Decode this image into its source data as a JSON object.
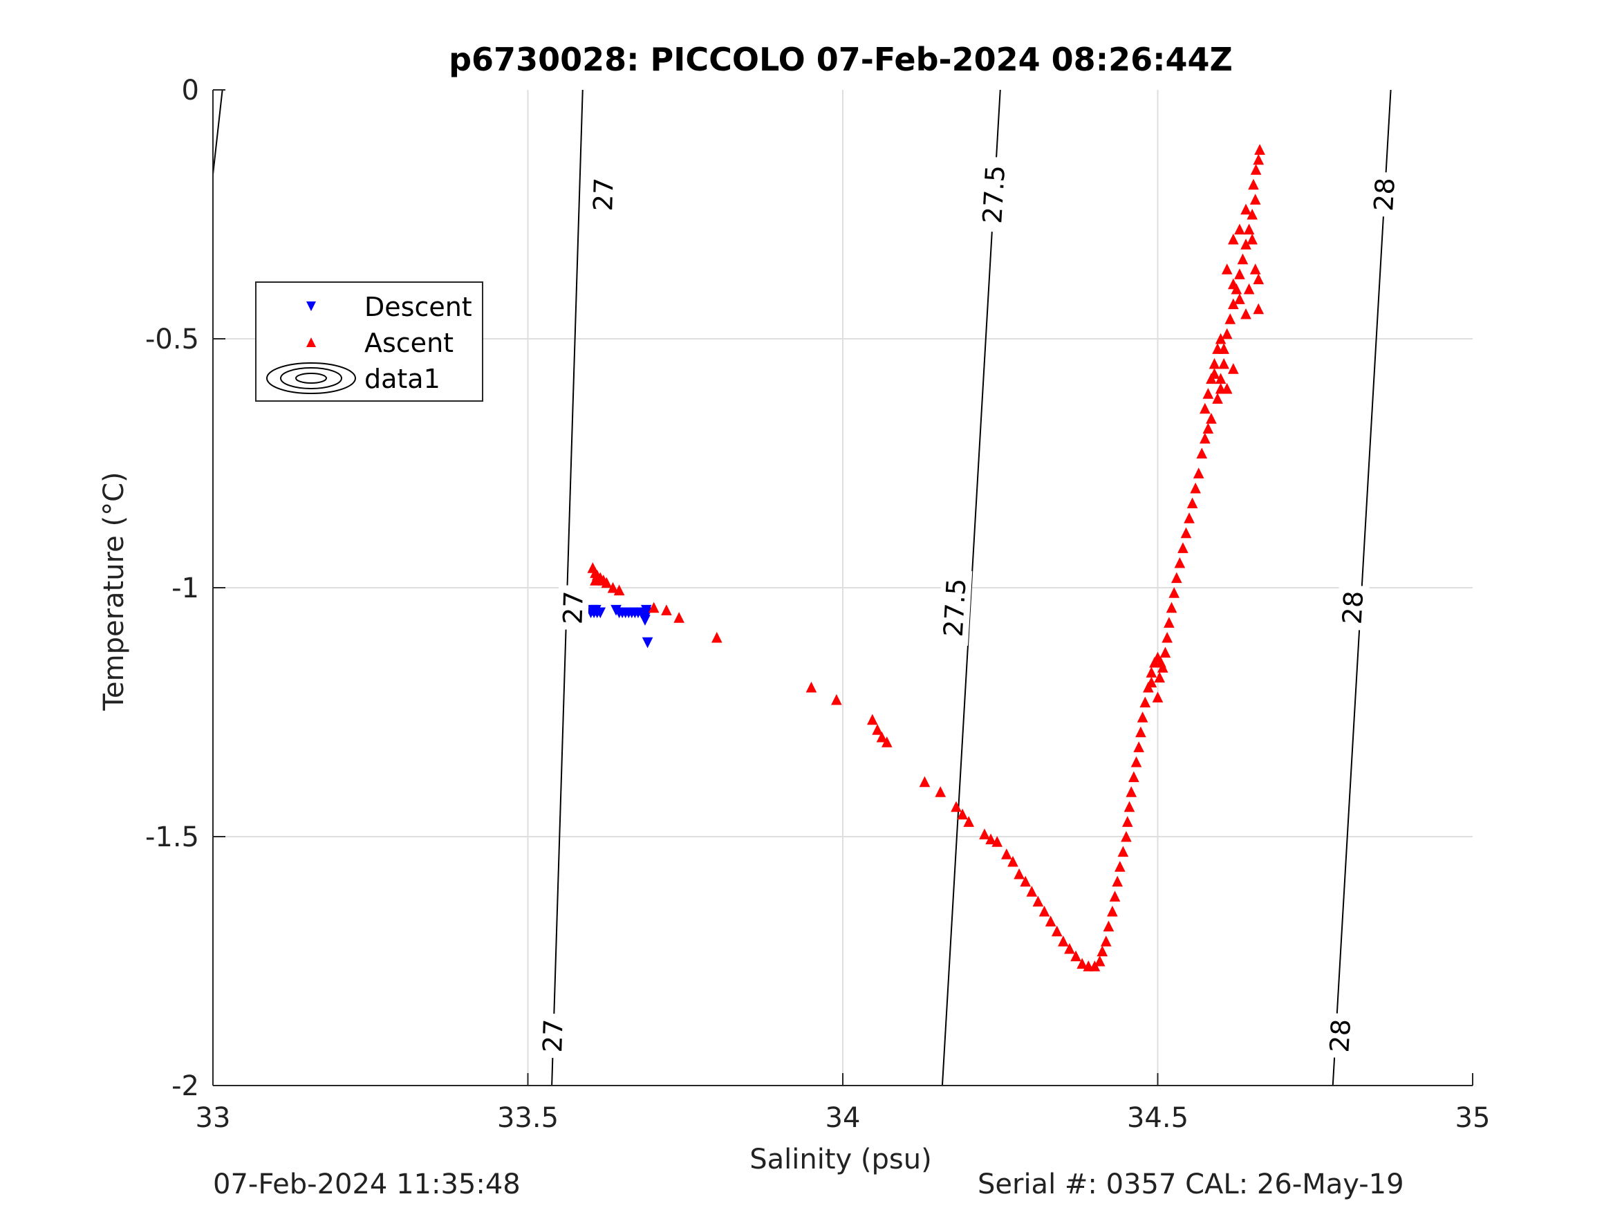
{
  "chart_data": {
    "type": "scatter",
    "title": "p6730028: PICCOLO 07-Feb-2024 08:26:44Z",
    "xlabel": "Salinity (psu)",
    "ylabel": "Temperature (°C)",
    "xlim": [
      33,
      35
    ],
    "ylim": [
      -2,
      0
    ],
    "xticks": [
      33,
      33.5,
      34,
      34.5,
      35
    ],
    "yticks": [
      0,
      -0.5,
      -1,
      -1.5,
      -2
    ],
    "xtick_labels": [
      "33",
      "33.5",
      "34",
      "34.5",
      "35"
    ],
    "ytick_labels": [
      "0",
      "-0.5",
      "-1",
      "-1.5",
      "-2"
    ],
    "grid": true,
    "legend": {
      "placement": "upper-left",
      "entries": [
        {
          "label": "Descent",
          "color": "#0000ff",
          "marker": "triangle-down"
        },
        {
          "label": "Ascent",
          "color": "#ff0000",
          "marker": "triangle-up"
        },
        {
          "label": "data1",
          "color": "#000000",
          "marker": "contour"
        }
      ]
    },
    "series": [
      {
        "name": "Descent",
        "color": "#0000ff",
        "marker": "triangle-down",
        "points": [
          [
            33.6,
            -1.05
          ],
          [
            33.605,
            -1.05
          ],
          [
            33.61,
            -1.05
          ],
          [
            33.615,
            -1.05
          ],
          [
            33.603,
            -1.045
          ],
          [
            33.608,
            -1.045
          ],
          [
            33.64,
            -1.045
          ],
          [
            33.645,
            -1.05
          ],
          [
            33.65,
            -1.05
          ],
          [
            33.655,
            -1.05
          ],
          [
            33.66,
            -1.05
          ],
          [
            33.665,
            -1.05
          ],
          [
            33.67,
            -1.05
          ],
          [
            33.675,
            -1.05
          ],
          [
            33.68,
            -1.05
          ],
          [
            33.685,
            -1.05
          ],
          [
            33.69,
            -1.05
          ],
          [
            33.688,
            -1.045
          ],
          [
            33.686,
            -1.065
          ],
          [
            33.69,
            -1.11
          ]
        ]
      },
      {
        "name": "Ascent",
        "color": "#ff0000",
        "marker": "triangle-up",
        "points": [
          [
            33.603,
            -0.96
          ],
          [
            33.607,
            -0.97
          ],
          [
            33.61,
            -0.975
          ],
          [
            33.607,
            -0.985
          ],
          [
            33.615,
            -0.98
          ],
          [
            33.62,
            -0.985
          ],
          [
            33.625,
            -0.99
          ],
          [
            33.635,
            -1.0
          ],
          [
            33.645,
            -1.005
          ],
          [
            33.7,
            -1.04
          ],
          [
            33.72,
            -1.045
          ],
          [
            33.74,
            -1.06
          ],
          [
            33.8,
            -1.1
          ],
          [
            33.95,
            -1.2
          ],
          [
            33.99,
            -1.225
          ],
          [
            34.047,
            -1.265
          ],
          [
            34.055,
            -1.285
          ],
          [
            34.062,
            -1.3
          ],
          [
            34.07,
            -1.31
          ],
          [
            34.13,
            -1.39
          ],
          [
            34.155,
            -1.41
          ],
          [
            34.18,
            -1.44
          ],
          [
            34.19,
            -1.455
          ],
          [
            34.2,
            -1.47
          ],
          [
            34.225,
            -1.495
          ],
          [
            34.235,
            -1.505
          ],
          [
            34.245,
            -1.51
          ],
          [
            34.26,
            -1.535
          ],
          [
            34.27,
            -1.55
          ],
          [
            34.28,
            -1.575
          ],
          [
            34.29,
            -1.59
          ],
          [
            34.3,
            -1.61
          ],
          [
            34.31,
            -1.63
          ],
          [
            34.32,
            -1.65
          ],
          [
            34.33,
            -1.67
          ],
          [
            34.34,
            -1.69
          ],
          [
            34.35,
            -1.71
          ],
          [
            34.36,
            -1.725
          ],
          [
            34.37,
            -1.74
          ],
          [
            34.38,
            -1.755
          ],
          [
            34.39,
            -1.76
          ],
          [
            34.4,
            -1.76
          ],
          [
            34.408,
            -1.75
          ],
          [
            34.412,
            -1.73
          ],
          [
            34.418,
            -1.71
          ],
          [
            34.422,
            -1.68
          ],
          [
            34.428,
            -1.65
          ],
          [
            34.432,
            -1.62
          ],
          [
            34.436,
            -1.59
          ],
          [
            34.44,
            -1.56
          ],
          [
            34.445,
            -1.53
          ],
          [
            34.45,
            -1.5
          ],
          [
            34.452,
            -1.47
          ],
          [
            34.455,
            -1.44
          ],
          [
            34.458,
            -1.41
          ],
          [
            34.462,
            -1.38
          ],
          [
            34.466,
            -1.35
          ],
          [
            34.47,
            -1.32
          ],
          [
            34.473,
            -1.29
          ],
          [
            34.476,
            -1.26
          ],
          [
            34.48,
            -1.23
          ],
          [
            34.485,
            -1.2
          ],
          [
            34.49,
            -1.17
          ],
          [
            34.495,
            -1.15
          ],
          [
            34.5,
            -1.14
          ],
          [
            34.505,
            -1.15
          ],
          [
            34.49,
            -1.19
          ],
          [
            34.5,
            -1.22
          ],
          [
            34.503,
            -1.18
          ],
          [
            34.508,
            -1.16
          ],
          [
            34.512,
            -1.13
          ],
          [
            34.515,
            -1.1
          ],
          [
            34.518,
            -1.07
          ],
          [
            34.522,
            -1.04
          ],
          [
            34.526,
            -1.01
          ],
          [
            34.53,
            -0.98
          ],
          [
            34.535,
            -0.95
          ],
          [
            34.54,
            -0.92
          ],
          [
            34.545,
            -0.89
          ],
          [
            34.55,
            -0.86
          ],
          [
            34.555,
            -0.83
          ],
          [
            34.56,
            -0.8
          ],
          [
            34.565,
            -0.77
          ],
          [
            34.57,
            -0.73
          ],
          [
            34.575,
            -0.7
          ],
          [
            34.58,
            -0.68
          ],
          [
            34.585,
            -0.66
          ],
          [
            34.575,
            -0.64
          ],
          [
            34.58,
            -0.61
          ],
          [
            34.585,
            -0.58
          ],
          [
            34.59,
            -0.55
          ],
          [
            34.595,
            -0.52
          ],
          [
            34.6,
            -0.5
          ],
          [
            34.605,
            -0.52
          ],
          [
            34.61,
            -0.49
          ],
          [
            34.615,
            -0.46
          ],
          [
            34.62,
            -0.43
          ],
          [
            34.625,
            -0.4
          ],
          [
            34.63,
            -0.37
          ],
          [
            34.635,
            -0.34
          ],
          [
            34.64,
            -0.31
          ],
          [
            34.645,
            -0.28
          ],
          [
            34.65,
            -0.25
          ],
          [
            34.655,
            -0.22
          ],
          [
            34.652,
            -0.19
          ],
          [
            34.656,
            -0.16
          ],
          [
            34.66,
            -0.14
          ],
          [
            34.662,
            -0.12
          ],
          [
            34.66,
            -0.38
          ],
          [
            34.64,
            -0.45
          ],
          [
            34.63,
            -0.42
          ],
          [
            34.62,
            -0.39
          ],
          [
            34.61,
            -0.36
          ],
          [
            34.62,
            -0.3
          ],
          [
            34.63,
            -0.28
          ],
          [
            34.64,
            -0.24
          ],
          [
            34.65,
            -0.3
          ],
          [
            34.655,
            -0.36
          ],
          [
            34.645,
            -0.4
          ],
          [
            34.66,
            -0.44
          ],
          [
            34.6,
            -0.6
          ],
          [
            34.59,
            -0.57
          ],
          [
            34.605,
            -0.55
          ],
          [
            34.6,
            -0.58
          ],
          [
            34.595,
            -0.62
          ],
          [
            34.61,
            -0.6
          ],
          [
            34.62,
            -0.56
          ]
        ]
      }
    ],
    "contours": [
      {
        "level": "27",
        "line": [
          [
            33.538,
            -2
          ],
          [
            33.587,
            0
          ]
        ],
        "labels": [
          {
            "text": "27",
            "at": [
              33.54,
              -1.9
            ]
          },
          {
            "text": "27",
            "at": [
              33.572,
              -1.04
            ]
          },
          {
            "text": "27",
            "at": [
              33.62,
              -0.21
            ]
          }
        ]
      },
      {
        "level": "27.5",
        "line": [
          [
            34.158,
            -2
          ],
          [
            34.25,
            0
          ]
        ],
        "labels": [
          {
            "text": "27.5",
            "at": [
              34.178,
              -1.04
            ]
          },
          {
            "text": "27.5",
            "at": [
              34.24,
              -0.21
            ]
          }
        ]
      },
      {
        "level": "28",
        "line": [
          [
            34.778,
            -2
          ],
          [
            34.87,
            0
          ]
        ],
        "labels": [
          {
            "text": "28",
            "at": [
              34.79,
              -1.9
            ]
          },
          {
            "text": "28",
            "at": [
              34.81,
              -1.04
            ]
          },
          {
            "text": "28",
            "at": [
              34.86,
              -0.21
            ]
          }
        ]
      },
      {
        "level": "",
        "line": [
          [
            33,
            -0.17
          ],
          [
            33.015,
            0
          ]
        ],
        "labels": []
      }
    ]
  },
  "footer": {
    "left": "07-Feb-2024 11:35:48",
    "right": "Serial #: 0357  CAL: 26-May-19"
  }
}
